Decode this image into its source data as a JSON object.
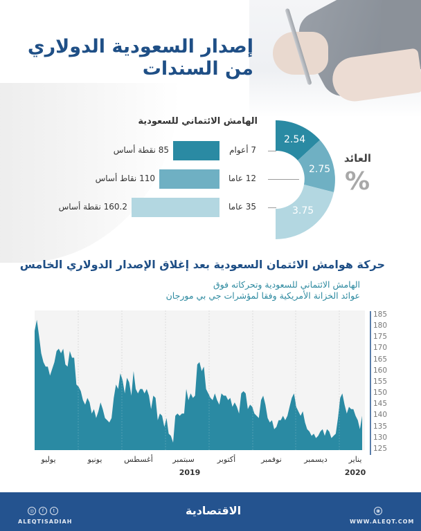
{
  "title": {
    "line1": "إصدار السعودية الدولاري",
    "line2": "من السندات"
  },
  "margin_section": {
    "title": "الهامش الائتماني للسعودية",
    "rows": [
      {
        "tenor": "7 أعوام",
        "spread_label": "85 نقطة أساس",
        "spread_bp": 85,
        "color": "#2a8aa3"
      },
      {
        "tenor": "12 عاما",
        "spread_label": "110 نقاط أساس",
        "spread_bp": 110,
        "color": "#6fb0c3"
      },
      {
        "tenor": "35 عاما",
        "spread_label": "160.2 نقطة أساس",
        "spread_bp": 160.2,
        "color": "#b3d7e1"
      }
    ]
  },
  "yield_section": {
    "title": "العائد",
    "unit": "%",
    "values": [
      "2.54",
      "2.75",
      "3.75"
    ]
  },
  "chart_section": {
    "title": "حركة هوامش الائتمان السعودية بعد إغلاق الإصدار الدولاري الخامس",
    "subtitle_line1": "الهامش الائتماني للسعودية وتحركاته فوق",
    "subtitle_line2": "عوائد الخزانة الأمريكية وفقا لمؤشرات جي بي مورجان"
  },
  "chart_data": [
    {
      "type": "bar",
      "title": "الهامش الائتماني للسعودية",
      "categories": [
        "7 أعوام",
        "12 عاما",
        "35 عاما"
      ],
      "values": [
        85,
        110,
        160.2
      ],
      "unit": "نقطة أساس",
      "orientation": "horizontal"
    },
    {
      "type": "pie",
      "title": "العائد %",
      "categories": [
        "7 أعوام",
        "12 عاما",
        "35 عاما"
      ],
      "values": [
        2.54,
        2.75,
        3.75
      ],
      "style": "half-donut"
    },
    {
      "type": "area",
      "title": "حركة هوامش الائتمان السعودية بعد إغلاق الإصدار الدولاري الخامس",
      "subtitle": "الهامش الائتماني للسعودية وتحركاته فوق عوائد الخزانة الأمريكية وفقا لمؤشرات جي بي مورجان",
      "xlabel": "",
      "ylabel": "",
      "x_ticks": [
        "يوليو",
        "يونيو",
        "أغسطس",
        "سبتمبر",
        "أكتوبر",
        "نوفمبر",
        "ديسمبر",
        "يناير"
      ],
      "year_labels": [
        {
          "under": "سبتمبر",
          "text": "2019"
        },
        {
          "under": "يناير",
          "text": "2020"
        }
      ],
      "y_ticks": [
        185,
        180,
        175,
        170,
        165,
        160,
        155,
        150,
        145,
        140,
        135,
        130,
        125
      ],
      "ylim": [
        123,
        186
      ],
      "grid": "vertical dotted lines at month boundaries",
      "y_axis_position": "right",
      "color": "#2a8aa3",
      "values": [
        178,
        183,
        176,
        168,
        164,
        162,
        162,
        158,
        161,
        164,
        169,
        170,
        168,
        170,
        163,
        162,
        169,
        166,
        166,
        154,
        153,
        151,
        147,
        145,
        148,
        146,
        141,
        143,
        139,
        142,
        146,
        143,
        139,
        138,
        137,
        139,
        148,
        154,
        152,
        159,
        156,
        150,
        157,
        155,
        149,
        160,
        152,
        150,
        152,
        152,
        150,
        152,
        149,
        143,
        149,
        148,
        138,
        141,
        140,
        135,
        139,
        132,
        131,
        128,
        140,
        141,
        140,
        141,
        141,
        152,
        147,
        150,
        148,
        149,
        163,
        164,
        160,
        162,
        152,
        150,
        148,
        147,
        150,
        147,
        145,
        150,
        149,
        149,
        147,
        148,
        144,
        146,
        144,
        141,
        150,
        151,
        150,
        143,
        145,
        144,
        141,
        140,
        139,
        147,
        149,
        145,
        139,
        137,
        138,
        134,
        135,
        138,
        138,
        140,
        138,
        140,
        144,
        148,
        150,
        144,
        142,
        140,
        142,
        137,
        134,
        133,
        131,
        132,
        130,
        131,
        133,
        134,
        131,
        134,
        133,
        130,
        131,
        132,
        139,
        148,
        150,
        145,
        141,
        144,
        143,
        143,
        140,
        138,
        134,
        140
      ]
    }
  ],
  "footer": {
    "handle": "ALEQTISADIAH",
    "logo": "الاقتصادية",
    "website": "WWW.ALEQT.COM",
    "social_icons": [
      "instagram-icon",
      "facebook-icon",
      "twitter-icon"
    ]
  }
}
